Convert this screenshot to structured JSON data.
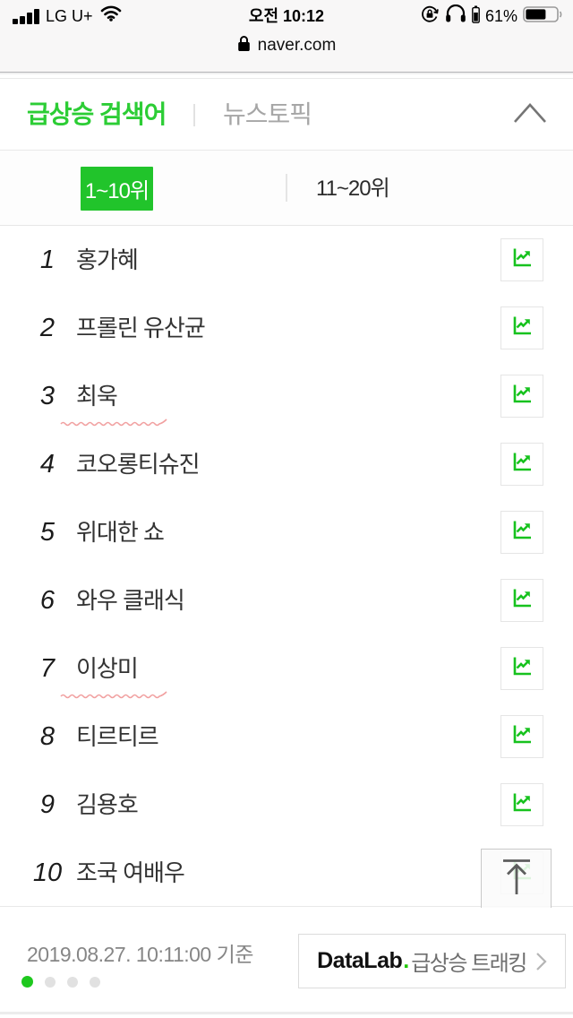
{
  "colors": {
    "accent_green": "#2ccd35",
    "button_green": "#21c42b",
    "icon_green": "#17c21e",
    "datalab_dot_green": "#1ec800",
    "squiggle_red": "#ef8f8f"
  },
  "status_bar": {
    "carrier": "LG U+",
    "time": "오전 10:12",
    "battery_percent": "61%"
  },
  "url_bar": {
    "domain": "naver.com"
  },
  "widget_header": {
    "active_tab": "급상승 검색어",
    "inactive_tab": "뉴스토픽"
  },
  "range_tabs": {
    "active": "1~10위",
    "inactive": "11~20위"
  },
  "ranking": [
    {
      "rank": "1",
      "keyword": "홍가혜"
    },
    {
      "rank": "2",
      "keyword": "프롤린 유산균"
    },
    {
      "rank": "3",
      "keyword": "최욱",
      "annotation": "red-squiggle"
    },
    {
      "rank": "4",
      "keyword": "코오롱티슈진"
    },
    {
      "rank": "5",
      "keyword": "위대한 쇼"
    },
    {
      "rank": "6",
      "keyword": "와우 클래식"
    },
    {
      "rank": "7",
      "keyword": "이상미",
      "annotation": "red-squiggle"
    },
    {
      "rank": "8",
      "keyword": "티르티르"
    },
    {
      "rank": "9",
      "keyword": "김용호"
    },
    {
      "rank": "10",
      "keyword": "조국 여배우"
    }
  ],
  "footer": {
    "timestamp": "2019.08.27. 10:11:00 기준",
    "datalab_brand": "DataLab",
    "datalab_dot": ".",
    "datalab_link": "급상승 트래킹",
    "pagination": {
      "total": 4,
      "active_index": 0
    }
  }
}
